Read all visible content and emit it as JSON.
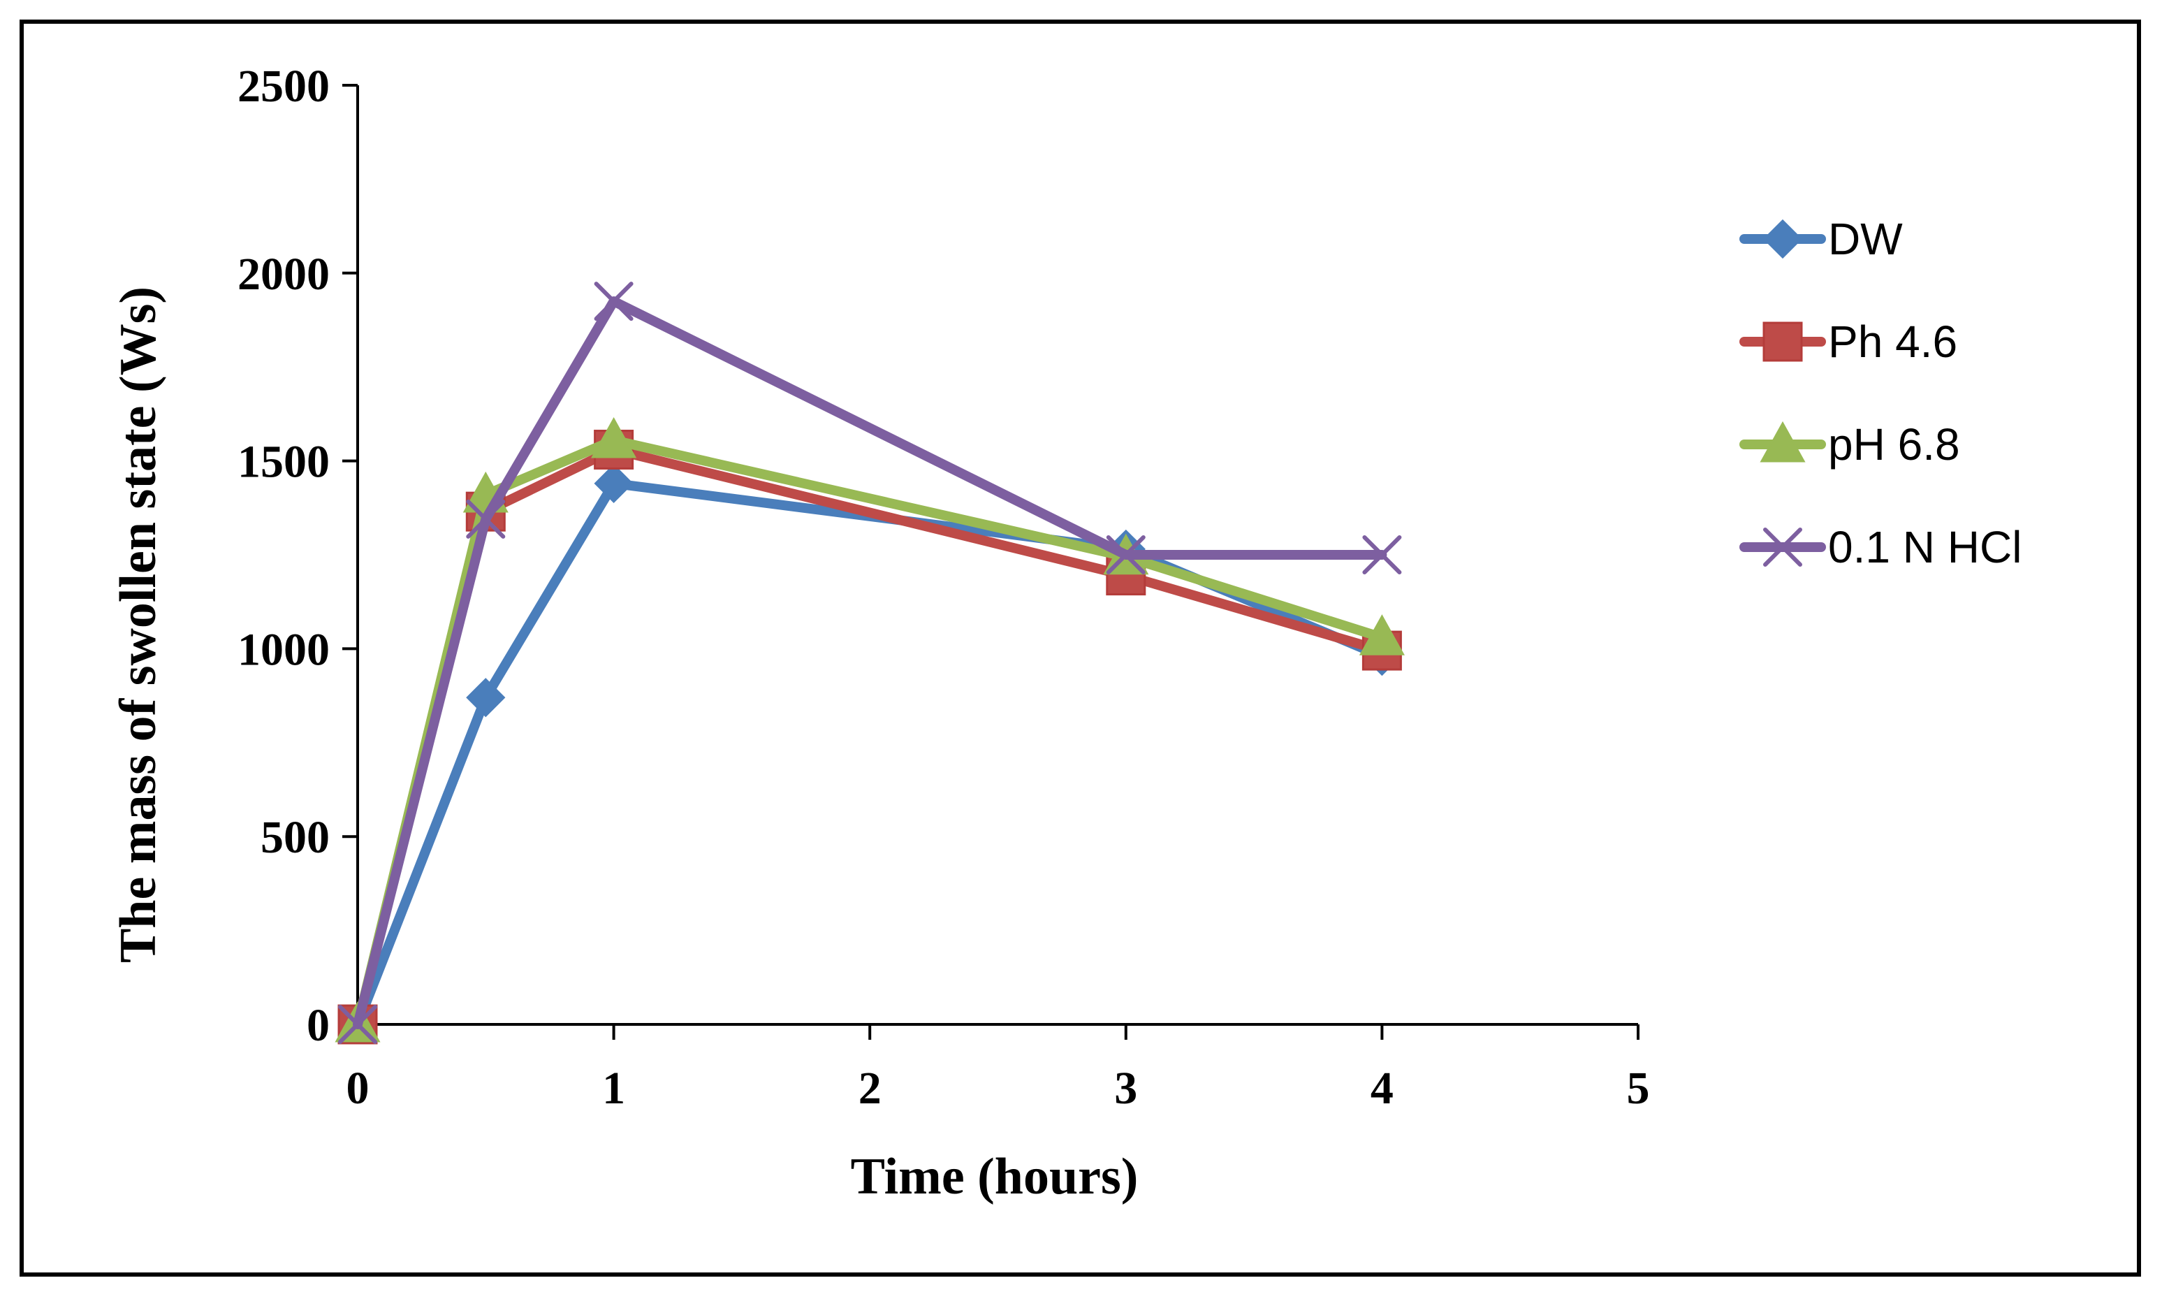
{
  "chart_data": {
    "type": "line",
    "title": "",
    "xlabel": "Time (hours)",
    "ylabel": "The mass of swollen state (Ws)",
    "xlim": [
      0,
      5
    ],
    "ylim": [
      0,
      2500
    ],
    "xticks": [
      0,
      1,
      2,
      3,
      4,
      5
    ],
    "yticks": [
      0,
      500,
      1000,
      1500,
      2000,
      2500
    ],
    "x_tick_labels": [
      "0",
      "1",
      "2",
      "3",
      "4",
      "5"
    ],
    "y_tick_labels": [
      "0",
      "500",
      "1000",
      "1500",
      "2000",
      "2500"
    ],
    "grid": false,
    "legend_position": "right",
    "series": [
      {
        "name": "DW",
        "color": "#4a7ebb",
        "marker": "diamond",
        "x": [
          0,
          0.5,
          1,
          3,
          4
        ],
        "y": [
          0,
          870,
          1440,
          1265,
          980
        ]
      },
      {
        "name": "Ph 4.6",
        "color": "#be4b48",
        "marker": "square",
        "x": [
          0,
          0.5,
          1,
          3,
          4
        ],
        "y": [
          0,
          1365,
          1530,
          1195,
          995
        ]
      },
      {
        "name": "pH 6.8",
        "color": "#98b954",
        "marker": "triangle",
        "x": [
          0,
          0.5,
          1,
          3,
          4
        ],
        "y": [
          0,
          1410,
          1555,
          1245,
          1030
        ]
      },
      {
        "name": "0.1 N HCl",
        "color": "#7d5fa0",
        "marker": "x",
        "x": [
          0,
          0.5,
          1,
          3,
          4
        ],
        "y": [
          0,
          1345,
          1925,
          1250,
          1250
        ]
      }
    ]
  }
}
